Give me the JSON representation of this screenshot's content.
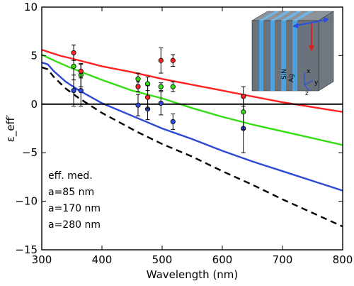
{
  "chart_data": {
    "type": "line",
    "xlabel": "Wavelength (nm)",
    "ylabel": "ε_eff′",
    "xlim": [
      300,
      800
    ],
    "ylim": [
      -15,
      10
    ],
    "xticks": [
      300,
      400,
      500,
      600,
      700,
      800
    ],
    "yticks": [
      -15,
      -10,
      -5,
      0,
      5,
      10
    ],
    "grid": false,
    "legend_position": "bottom-left",
    "series": [
      {
        "name": "eff. med.",
        "color": "#000000",
        "dashed": true,
        "x": [
          300,
          310,
          320,
          340,
          360,
          380,
          400,
          430,
          460,
          500,
          550,
          600,
          650,
          700,
          750,
          800
        ],
        "y": [
          3.8,
          3.6,
          2.8,
          1.6,
          0.7,
          -0.1,
          -0.9,
          -1.9,
          -2.9,
          -4.1,
          -5.4,
          -6.9,
          -8.3,
          -9.8,
          -11.2,
          -12.6
        ]
      },
      {
        "name": "a=85 nm",
        "color": "#2c49d6",
        "dashed": false,
        "x": [
          300,
          310,
          320,
          340,
          360,
          380,
          400,
          450,
          500,
          550,
          600,
          650,
          700,
          750,
          800
        ],
        "y": [
          4.3,
          4.1,
          3.4,
          2.3,
          1.5,
          0.8,
          0.1,
          -1.2,
          -2.5,
          -3.6,
          -4.8,
          -5.9,
          -6.9,
          -7.9,
          -8.9
        ]
      },
      {
        "name": "a=170 nm",
        "color": "#33dd11",
        "dashed": false,
        "x": [
          300,
          320,
          350,
          400,
          450,
          500,
          550,
          600,
          650,
          700,
          750,
          800
        ],
        "y": [
          5.1,
          4.5,
          3.7,
          2.5,
          1.4,
          0.6,
          -0.4,
          -1.3,
          -2.1,
          -2.8,
          -3.5,
          -4.2
        ]
      },
      {
        "name": "a=280 nm",
        "color": "#ff2222",
        "dashed": false,
        "x": [
          300,
          330,
          350,
          400,
          450,
          500,
          550,
          600,
          650,
          700,
          750,
          800
        ],
        "y": [
          5.6,
          5.0,
          4.7,
          3.9,
          3.3,
          2.6,
          2.0,
          1.4,
          0.8,
          0.2,
          -0.3,
          -0.8
        ]
      }
    ],
    "measurements": [
      {
        "series": "a=85 nm",
        "x": 353,
        "y": 1.4,
        "err": 1.6
      },
      {
        "series": "a=85 nm",
        "x": 365,
        "y": 1.4,
        "err": 1.6
      },
      {
        "series": "a=85 nm",
        "x": 460,
        "y": -0.1,
        "err": 1.1
      },
      {
        "series": "a=85 nm",
        "x": 476,
        "y": -0.5,
        "err": 1.1
      },
      {
        "series": "a=85 nm",
        "x": 498,
        "y": 0.1,
        "err": 1.2
      },
      {
        "series": "a=85 nm",
        "x": 518,
        "y": -1.8,
        "err": 0.8
      },
      {
        "series": "a=85 nm",
        "x": 635,
        "y": -2.5,
        "err": 2.5
      },
      {
        "series": "a=170 nm",
        "x": 353,
        "y": 3.9,
        "err": 1.4
      },
      {
        "series": "a=170 nm",
        "x": 365,
        "y": 3.0,
        "err": 1.2
      },
      {
        "series": "a=170 nm",
        "x": 460,
        "y": 2.6,
        "err": 0.6
      },
      {
        "series": "a=170 nm",
        "x": 476,
        "y": 2.1,
        "err": 0.7
      },
      {
        "series": "a=170 nm",
        "x": 498,
        "y": 1.8,
        "err": 0.4
      },
      {
        "series": "a=170 nm",
        "x": 518,
        "y": 1.8,
        "err": 0.5
      },
      {
        "series": "a=170 nm",
        "x": 635,
        "y": -0.8,
        "err": 1.8
      },
      {
        "series": "a=280 nm",
        "x": 353,
        "y": 5.3,
        "err": 0.8
      },
      {
        "series": "a=280 nm",
        "x": 365,
        "y": 3.4,
        "err": 0.7
      },
      {
        "series": "a=280 nm",
        "x": 460,
        "y": 1.8,
        "err": 0.5
      },
      {
        "series": "a=280 nm",
        "x": 476,
        "y": 0.7,
        "err": 1.2
      },
      {
        "series": "a=280 nm",
        "x": 498,
        "y": 4.5,
        "err": 1.3
      },
      {
        "series": "a=280 nm",
        "x": 518,
        "y": 4.5,
        "err": 0.6
      },
      {
        "series": "a=280 nm",
        "x": 635,
        "y": 0.8,
        "err": 1.0
      }
    ],
    "legend": [
      {
        "label": "eff. med.",
        "color": "#000000"
      },
      {
        "label": "a=85 nm",
        "color": "#2c49d6"
      },
      {
        "label": "a=170 nm",
        "color": "#33dd11"
      },
      {
        "label": "a=280 nm",
        "color": "#ff2222"
      }
    ],
    "inset": {
      "labels": [
        "SiN",
        "Ag",
        "x",
        "y",
        "z"
      ],
      "layer_colors": [
        "#606a73",
        "#4aa3e0"
      ],
      "arrow_color_polarization": "#2a4fe0",
      "arrow_color_propagation": "#e02020"
    }
  }
}
